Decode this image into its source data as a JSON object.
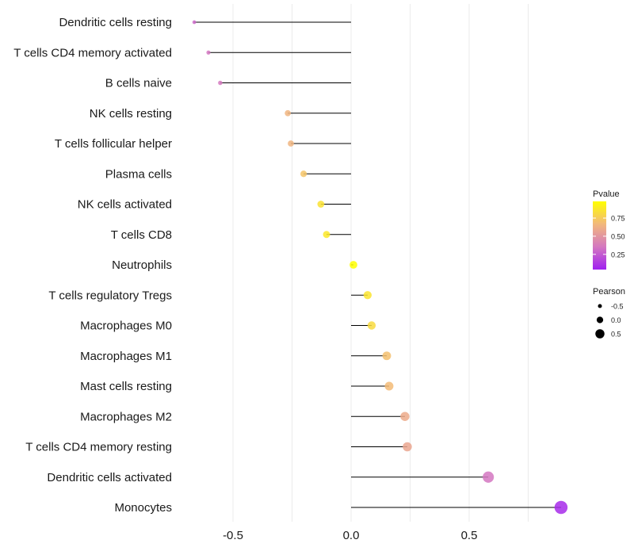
{
  "chart_data": {
    "type": "lollipop",
    "title": "",
    "xlabel": "",
    "ylabel": "",
    "xlim": [
      -0.75,
      1.0
    ],
    "xticks": [
      -0.5,
      0.0,
      0.5
    ],
    "xtick_labels": [
      "-0.5",
      "0.0",
      "0.5"
    ],
    "grid": true,
    "categories": [
      "Dendritic cells resting",
      "T cells CD4 memory activated",
      "B cells naive",
      "NK cells resting",
      "T cells follicular helper",
      "Plasma cells",
      "NK cells activated",
      "T cells CD8",
      "Neutrophils",
      "T cells regulatory  Tregs",
      "Macrophages M0",
      "Macrophages M1",
      "Mast cells resting",
      "Macrophages M2",
      "T cells CD4 memory resting",
      "Dendritic cells activated",
      "Monocytes"
    ],
    "pearson": [
      -0.664,
      -0.604,
      -0.554,
      -0.268,
      -0.255,
      -0.201,
      -0.128,
      -0.104,
      0.01,
      0.07,
      0.087,
      0.151,
      0.161,
      0.228,
      0.238,
      0.581,
      0.889
    ],
    "pvalue": [
      0.3,
      0.35,
      0.36,
      0.65,
      0.65,
      0.72,
      0.85,
      0.88,
      0.98,
      0.86,
      0.82,
      0.7,
      0.68,
      0.6,
      0.58,
      0.35,
      0.08
    ],
    "legend": {
      "color_title": "Pvalue",
      "color_ticks": [
        "0.75",
        "0.50",
        "0.25"
      ],
      "color_tick_values": [
        0.75,
        0.5,
        0.25
      ],
      "color_range": [
        0.04,
        0.98
      ],
      "size_title": "Pearson",
      "size_labels": [
        "-0.5",
        "0.0",
        "0.5"
      ],
      "size_values": [
        -0.5,
        0.0,
        0.5
      ],
      "placement": "right",
      "colors": [
        "#a020f0",
        "#d478c0",
        "#f2b87c",
        "#ffff00"
      ]
    }
  }
}
